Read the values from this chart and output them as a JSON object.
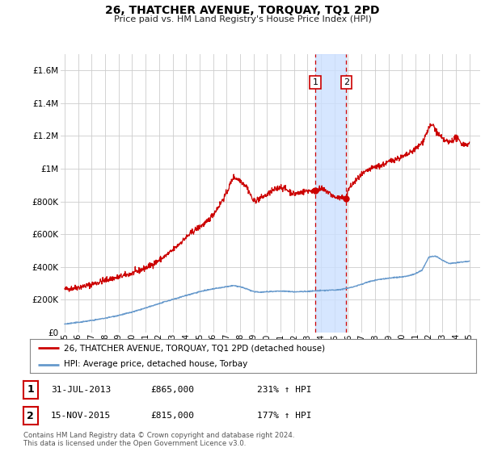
{
  "title": "26, THATCHER AVENUE, TORQUAY, TQ1 2PD",
  "subtitle": "Price paid vs. HM Land Registry's House Price Index (HPI)",
  "ylim": [
    0,
    1700000
  ],
  "yticks": [
    0,
    200000,
    400000,
    600000,
    800000,
    1000000,
    1200000,
    1400000,
    1600000
  ],
  "ytick_labels": [
    "£0",
    "£200K",
    "£400K",
    "£600K",
    "£800K",
    "£1M",
    "£1.2M",
    "£1.4M",
    "£1.6M"
  ],
  "xlim_left": 1994.7,
  "xlim_right": 2025.8,
  "sale1": {
    "date_num": 2013.58,
    "price": 865000,
    "label": "1",
    "date_str": "31-JUL-2013",
    "pct": "231%"
  },
  "sale2": {
    "date_num": 2015.88,
    "price": 815000,
    "label": "2",
    "date_str": "15-NOV-2015",
    "pct": "177%"
  },
  "legend_red": "26, THATCHER AVENUE, TORQUAY, TQ1 2PD (detached house)",
  "legend_blue": "HPI: Average price, detached house, Torbay",
  "footer": "Contains HM Land Registry data © Crown copyright and database right 2024.\nThis data is licensed under the Open Government Licence v3.0.",
  "red_color": "#cc0000",
  "blue_color": "#6699cc",
  "highlight_color": "#cce0ff",
  "dashed_color": "#cc0000",
  "bg_color": "#ffffff",
  "grid_color": "#cccccc",
  "title_fontsize": 10,
  "subtitle_fontsize": 8
}
